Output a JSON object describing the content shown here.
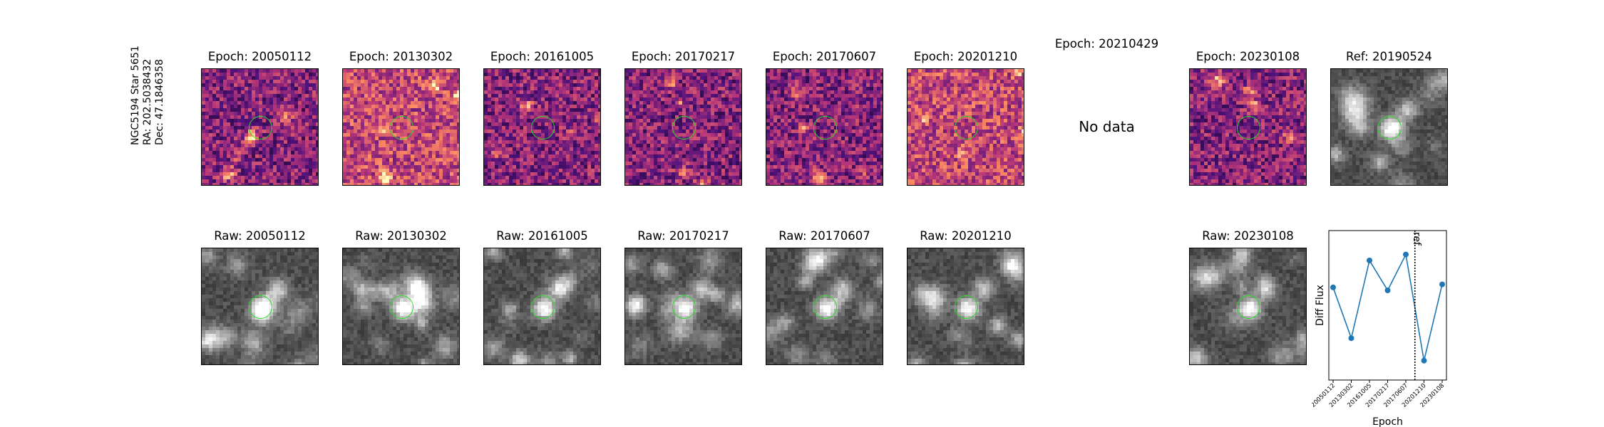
{
  "star_label": {
    "name": "NGC5194 Star 5651",
    "ra": "RA: 202.5038432",
    "dec": "Dec: 47.1846358"
  },
  "diff_row": [
    {
      "title": "Epoch: 20050112",
      "colormap": "magma",
      "has_data": true
    },
    {
      "title": "Epoch: 20130302",
      "colormap": "magma",
      "has_data": true
    },
    {
      "title": "Epoch: 20161005",
      "colormap": "magma",
      "has_data": true
    },
    {
      "title": "Epoch: 20170217",
      "colormap": "magma",
      "has_data": true
    },
    {
      "title": "Epoch: 20170607",
      "colormap": "magma",
      "has_data": true
    },
    {
      "title": "Epoch: 20201210",
      "colormap": "magma",
      "has_data": true
    },
    {
      "title": "Epoch: 20210429",
      "colormap": "magma",
      "has_data": false,
      "nodata_text": "No data"
    },
    {
      "title": "Epoch: 20230108",
      "colormap": "magma",
      "has_data": true
    },
    {
      "title": "Ref: 20190524",
      "colormap": "gray",
      "has_data": true
    }
  ],
  "raw_row": [
    {
      "title": "Raw: 20050112",
      "colormap": "gray"
    },
    {
      "title": "Raw: 20130302",
      "colormap": "gray"
    },
    {
      "title": "Raw: 20161005",
      "colormap": "gray"
    },
    {
      "title": "Raw: 20170217",
      "colormap": "gray"
    },
    {
      "title": "Raw: 20170607",
      "colormap": "gray"
    },
    {
      "title": "Raw: 20201210",
      "colormap": "gray"
    },
    {
      "title": "Raw: 20230108",
      "colormap": "gray"
    }
  ],
  "colors": {
    "aperture": "#22dd22",
    "line": "#1f77b4"
  },
  "chart_data": {
    "type": "line",
    "xlabel": "Epoch",
    "ylabel": "Diff Flux",
    "categories": [
      "20050112",
      "20130302",
      "20161005",
      "20170217",
      "20170607",
      "20201210",
      "20230108"
    ],
    "series": [
      {
        "values": [
          0.62,
          0.28,
          0.8,
          0.6,
          0.84,
          0.13,
          0.64
        ]
      }
    ],
    "ylim": [
      0,
      1
    ],
    "ref_line": {
      "after_index": 4.5,
      "label": "ref",
      "style": "dotted"
    },
    "yticks_shown": false
  }
}
